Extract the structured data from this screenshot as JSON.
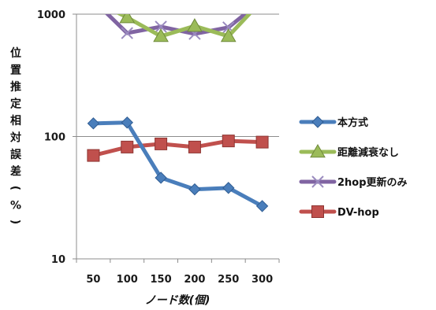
{
  "chart_data": {
    "type": "line",
    "title": "",
    "xlabel": "ノード数(個)",
    "ylabel": "位置推定相対誤差(%)",
    "categories": [
      "50",
      "100",
      "150",
      "200",
      "250",
      "300"
    ],
    "y_scale": "log",
    "ylim": [
      10,
      1000
    ],
    "y_ticks": [
      "10",
      "100",
      "1000"
    ],
    "grid": "horizontal major gridlines",
    "legend_position": "right",
    "series": [
      {
        "name": "本方式",
        "color": "#4a7ebb",
        "marker": "diamond",
        "values": [
          128,
          130,
          46,
          37,
          38,
          27
        ]
      },
      {
        "name": "距離減衰なし",
        "color": "#9bbb59",
        "marker": "triangle",
        "values": [
          1300,
          940,
          660,
          800,
          660,
          1300
        ]
      },
      {
        "name": "2hop更新のみ",
        "color": "#8064a2",
        "marker": "x",
        "values": [
          1300,
          700,
          790,
          690,
          780,
          1300
        ]
      },
      {
        "name": "DV-hop",
        "color": "#c0504d",
        "marker": "square",
        "values": [
          70,
          82,
          87,
          82,
          92,
          90
        ]
      }
    ]
  }
}
